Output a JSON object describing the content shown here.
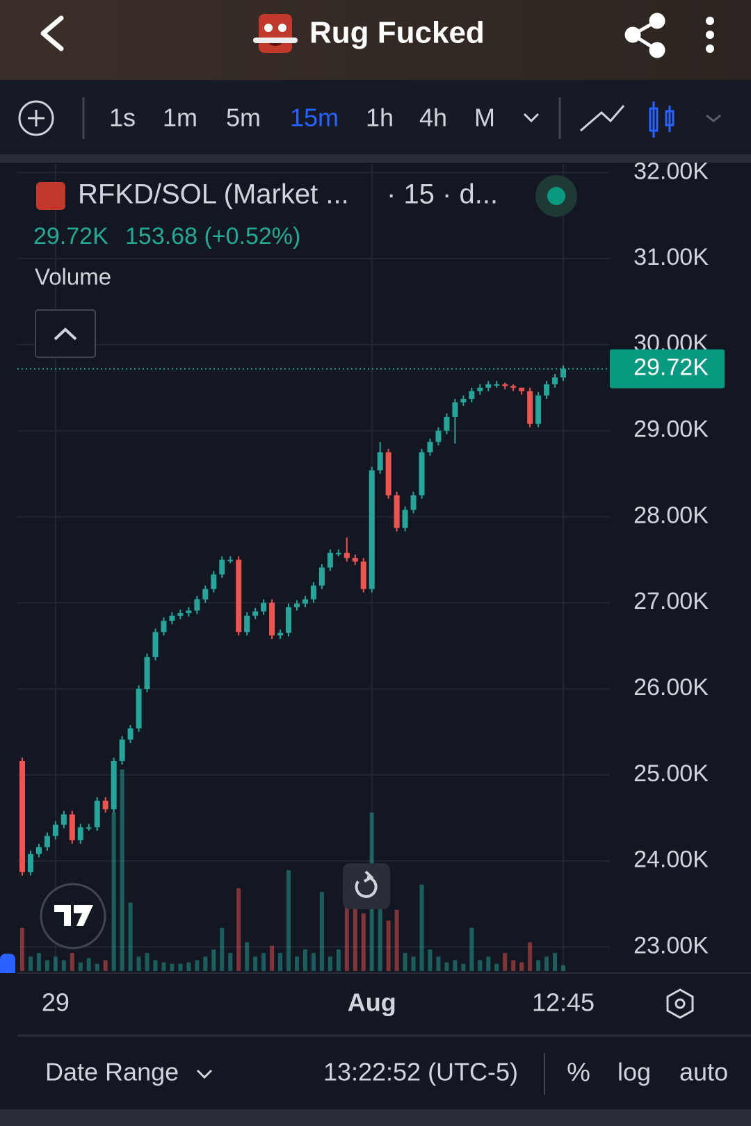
{
  "header": {
    "title": "Rug Fucked"
  },
  "toolbar": {
    "timeframes": [
      {
        "label": "1s"
      },
      {
        "label": "1m"
      },
      {
        "label": "5m"
      },
      {
        "label": "15m",
        "active": true
      },
      {
        "label": "1h"
      },
      {
        "label": "4h"
      },
      {
        "label": "M"
      }
    ]
  },
  "legend": {
    "symbol": "RFKD/SOL (Market ...",
    "interval": "· 15 · d...",
    "price": "29.72K",
    "change": "153.68 (+0.52%)",
    "volume_label": "Volume"
  },
  "chart_data": {
    "type": "candlestick",
    "up_color": "#26a69a",
    "down_color": "#ef5350",
    "open": [
      25160,
      23870,
      24080,
      24160,
      24290,
      24420,
      24540,
      24240,
      24390,
      24390,
      24700,
      24600,
      25160,
      25410,
      25540,
      26000,
      26370,
      26660,
      26790,
      26850,
      26880,
      26910,
      27040,
      27160,
      27330,
      27500,
      27500,
      26660,
      26850,
      26900,
      27000,
      26620,
      26650,
      26950,
      26990,
      27040,
      27200,
      27410,
      27580,
      27580,
      27520,
      27480,
      27160,
      28540,
      28750,
      28250,
      27870,
      28080,
      28250,
      28750,
      28870,
      29000,
      29160,
      29330,
      29370,
      29460,
      29500,
      29540,
      29540,
      29520,
      29500,
      29460,
      29080,
      29410,
      29540,
      29620
    ],
    "high": [
      25200,
      24120,
      24200,
      24330,
      24460,
      24580,
      24580,
      24430,
      24430,
      24740,
      24740,
      25200,
      25450,
      25580,
      26040,
      26410,
      26700,
      26830,
      26890,
      26920,
      26950,
      27080,
      27200,
      27370,
      27540,
      27540,
      27540,
      26890,
      26940,
      27040,
      27040,
      26690,
      26990,
      27030,
      27080,
      27240,
      27450,
      27620,
      27620,
      27760,
      27560,
      27520,
      28580,
      28870,
      28790,
      28290,
      28120,
      28290,
      28790,
      28910,
      29040,
      29200,
      29370,
      29410,
      29500,
      29540,
      29580,
      29580,
      29560,
      29540,
      29500,
      29500,
      29450,
      29580,
      29660,
      29760
    ],
    "low": [
      23830,
      23830,
      24040,
      24120,
      24250,
      24380,
      24200,
      24200,
      24350,
      24350,
      24560,
      24560,
      25120,
      25370,
      25500,
      25960,
      26330,
      26620,
      26750,
      26810,
      26840,
      26870,
      27000,
      27120,
      27290,
      27460,
      26620,
      26620,
      26810,
      26860,
      26580,
      26580,
      26610,
      26910,
      26950,
      27000,
      27160,
      27370,
      27540,
      27480,
      27440,
      27120,
      27120,
      28500,
      28210,
      27830,
      27830,
      28040,
      28210,
      28710,
      28830,
      28960,
      28850,
      29290,
      29330,
      29420,
      29460,
      29500,
      29480,
      29460,
      29420,
      29040,
      29040,
      29370,
      29500,
      29580
    ],
    "close": [
      23870,
      24080,
      24160,
      24290,
      24420,
      24540,
      24240,
      24390,
      24390,
      24700,
      24600,
      25160,
      25410,
      25540,
      26000,
      26370,
      26660,
      26790,
      26850,
      26880,
      26910,
      27040,
      27160,
      27330,
      27500,
      27500,
      26660,
      26850,
      26900,
      27000,
      26620,
      26650,
      26950,
      26990,
      27040,
      27200,
      27410,
      27580,
      27580,
      27520,
      27480,
      27160,
      28540,
      28750,
      28250,
      27870,
      28080,
      28250,
      28750,
      28870,
      29000,
      29160,
      29330,
      29370,
      29460,
      29500,
      29540,
      29540,
      29520,
      29500,
      29460,
      29080,
      29410,
      29540,
      29620,
      29720
    ],
    "volume": [
      60,
      20,
      25,
      15,
      20,
      15,
      25,
      12,
      18,
      10,
      15,
      220,
      280,
      95,
      20,
      25,
      15,
      12,
      10,
      10,
      12,
      15,
      20,
      30,
      60,
      25,
      115,
      40,
      20,
      25,
      35,
      25,
      140,
      20,
      30,
      25,
      110,
      20,
      30,
      90,
      140,
      80,
      220,
      90,
      70,
      85,
      25,
      20,
      120,
      30,
      20,
      12,
      15,
      10,
      60,
      15,
      20,
      10,
      25,
      15,
      12,
      40,
      15,
      20,
      25,
      8
    ],
    "ylim": [
      22720,
      32100
    ],
    "yticks": [
      {
        "value": 23000,
        "label": "23.00K"
      },
      {
        "value": 24000,
        "label": "24.00K"
      },
      {
        "value": 25000,
        "label": "25.00K"
      },
      {
        "value": 26000,
        "label": "26.00K"
      },
      {
        "value": 27000,
        "label": "27.00K"
      },
      {
        "value": 28000,
        "label": "28.00K"
      },
      {
        "value": 29000,
        "label": "29.00K"
      },
      {
        "value": 30000,
        "label": "30.00K"
      },
      {
        "value": 31000,
        "label": "31.00K"
      },
      {
        "value": 32000,
        "label": "32.00K"
      }
    ],
    "xticks": [
      {
        "value": 4,
        "label": "29"
      },
      {
        "value": 42,
        "label": "Aug"
      },
      {
        "value": 65,
        "label": "12:45"
      }
    ],
    "last_price": {
      "value": 29720,
      "label": "29.72K"
    },
    "grid": true
  },
  "footer": {
    "date_range": "Date Range",
    "clock": "13:22:52 (UTC-5)",
    "percent": "%",
    "log": "log",
    "auto": "auto"
  }
}
